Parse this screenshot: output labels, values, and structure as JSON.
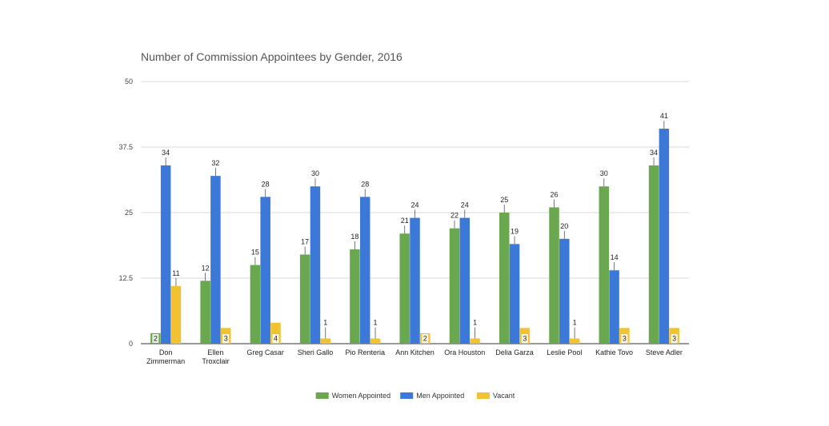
{
  "chart_data": {
    "type": "bar",
    "title": "Number of Commission Appointees by Gender, 2016",
    "xlabel": "",
    "ylabel": "",
    "ylim": [
      0,
      50
    ],
    "yticks": [
      "0",
      "12.5",
      "25",
      "37.5",
      "50"
    ],
    "grid": true,
    "legend_position": "bottom",
    "categories": [
      [
        "Don",
        "Zimmerman"
      ],
      [
        "Ellen",
        "Troxclair"
      ],
      [
        "Greg Casar"
      ],
      [
        "Sheri Gallo"
      ],
      [
        "Pio Renteria"
      ],
      [
        "Ann Kitchen"
      ],
      [
        "Ora Houston"
      ],
      [
        "Delia Garza"
      ],
      [
        "Leslie Pool"
      ],
      [
        "Kathie Tovo"
      ],
      [
        "Steve Adler"
      ]
    ],
    "series": [
      {
        "name": "Women Appointed",
        "color": "#6aa84f",
        "values": [
          2,
          12,
          15,
          17,
          18,
          21,
          22,
          25,
          26,
          30,
          34
        ]
      },
      {
        "name": "Men Appointed",
        "color": "#3c78d8",
        "values": [
          34,
          32,
          28,
          30,
          28,
          24,
          24,
          19,
          20,
          14,
          41
        ]
      },
      {
        "name": "Vacant",
        "color": "#f1c232",
        "values": [
          11,
          3,
          4,
          1,
          1,
          2,
          1,
          3,
          1,
          3,
          3
        ]
      }
    ]
  }
}
